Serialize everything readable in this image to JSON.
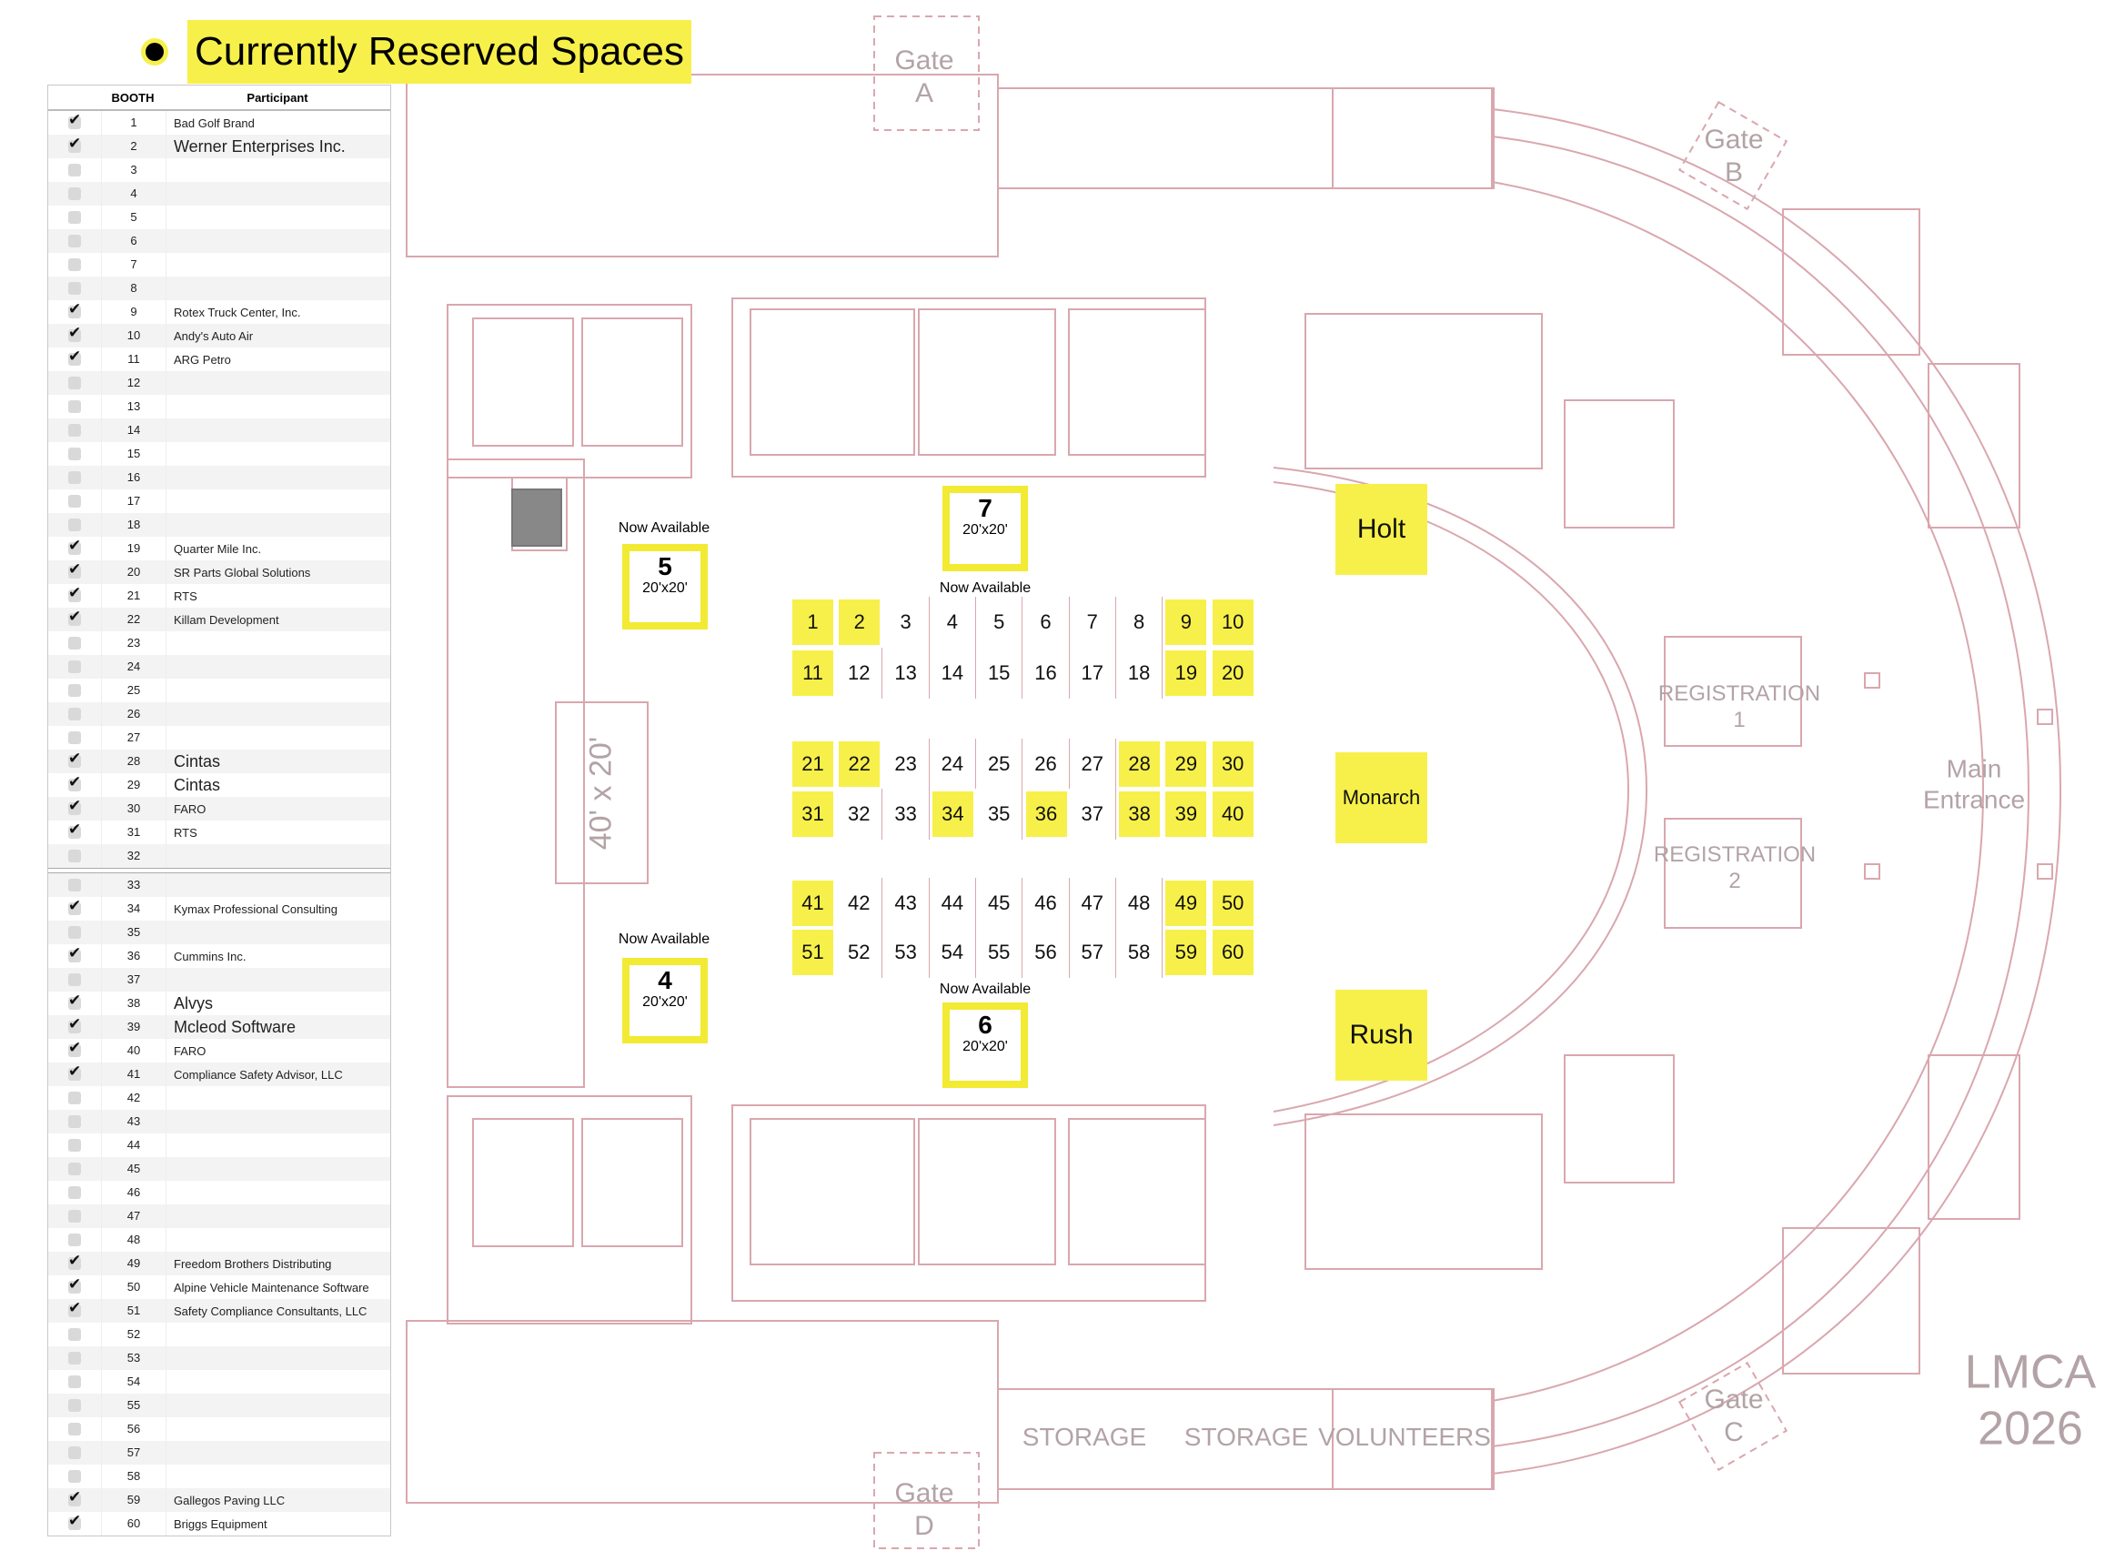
{
  "title": "Currently Reserved Spaces",
  "table": {
    "headers": {
      "booth": "BOOTH",
      "participant": "Participant"
    },
    "rows": [
      {
        "booth": "1",
        "reserved": true,
        "participant": "Bad Golf Brand"
      },
      {
        "booth": "2",
        "reserved": true,
        "participant": "Werner Enterprises Inc."
      },
      {
        "booth": "3",
        "reserved": false,
        "participant": ""
      },
      {
        "booth": "4",
        "reserved": false,
        "participant": ""
      },
      {
        "booth": "5",
        "reserved": false,
        "participant": ""
      },
      {
        "booth": "6",
        "reserved": false,
        "participant": ""
      },
      {
        "booth": "7",
        "reserved": false,
        "participant": ""
      },
      {
        "booth": "8",
        "reserved": false,
        "participant": ""
      },
      {
        "booth": "9",
        "reserved": true,
        "participant": "Rotex Truck Center, Inc."
      },
      {
        "booth": "10",
        "reserved": true,
        "participant": "Andy's Auto Air"
      },
      {
        "booth": "11",
        "reserved": true,
        "participant": "ARG Petro"
      },
      {
        "booth": "12",
        "reserved": false,
        "participant": ""
      },
      {
        "booth": "13",
        "reserved": false,
        "participant": ""
      },
      {
        "booth": "14",
        "reserved": false,
        "participant": ""
      },
      {
        "booth": "15",
        "reserved": false,
        "participant": ""
      },
      {
        "booth": "16",
        "reserved": false,
        "participant": ""
      },
      {
        "booth": "17",
        "reserved": false,
        "participant": ""
      },
      {
        "booth": "18",
        "reserved": false,
        "participant": ""
      },
      {
        "booth": "19",
        "reserved": true,
        "participant": "Quarter Mile Inc."
      },
      {
        "booth": "20",
        "reserved": true,
        "participant": "SR Parts Global Solutions"
      },
      {
        "booth": "21",
        "reserved": true,
        "participant": "RTS"
      },
      {
        "booth": "22",
        "reserved": true,
        "participant": "Killam Development"
      },
      {
        "booth": "23",
        "reserved": false,
        "participant": ""
      },
      {
        "booth": "24",
        "reserved": false,
        "participant": ""
      },
      {
        "booth": "25",
        "reserved": false,
        "participant": ""
      },
      {
        "booth": "26",
        "reserved": false,
        "participant": ""
      },
      {
        "booth": "27",
        "reserved": false,
        "participant": ""
      },
      {
        "booth": "28",
        "reserved": true,
        "participant": "Cintas"
      },
      {
        "booth": "29",
        "reserved": true,
        "participant": "Cintas"
      },
      {
        "booth": "30",
        "reserved": true,
        "participant": "FARO"
      },
      {
        "booth": "31",
        "reserved": true,
        "participant": "RTS"
      },
      {
        "booth": "32",
        "reserved": false,
        "participant": ""
      },
      {
        "booth": "33",
        "reserved": false,
        "participant": ""
      },
      {
        "booth": "34",
        "reserved": true,
        "participant": "Kymax Professional Consulting"
      },
      {
        "booth": "35",
        "reserved": false,
        "participant": ""
      },
      {
        "booth": "36",
        "reserved": true,
        "participant": "Cummins Inc."
      },
      {
        "booth": "37",
        "reserved": false,
        "participant": ""
      },
      {
        "booth": "38",
        "reserved": true,
        "participant": "Alvys"
      },
      {
        "booth": "39",
        "reserved": true,
        "participant": "Mcleod Software"
      },
      {
        "booth": "40",
        "reserved": true,
        "participant": "FARO"
      },
      {
        "booth": "41",
        "reserved": true,
        "participant": "Compliance Safety Advisor, LLC"
      },
      {
        "booth": "42",
        "reserved": false,
        "participant": ""
      },
      {
        "booth": "43",
        "reserved": false,
        "participant": ""
      },
      {
        "booth": "44",
        "reserved": false,
        "participant": ""
      },
      {
        "booth": "45",
        "reserved": false,
        "participant": ""
      },
      {
        "booth": "46",
        "reserved": false,
        "participant": ""
      },
      {
        "booth": "47",
        "reserved": false,
        "participant": ""
      },
      {
        "booth": "48",
        "reserved": false,
        "participant": ""
      },
      {
        "booth": "49",
        "reserved": true,
        "participant": "Freedom Brothers Distributing"
      },
      {
        "booth": "50",
        "reserved": true,
        "participant": "Alpine Vehicle Maintenance Software"
      },
      {
        "booth": "51",
        "reserved": true,
        "participant": "Safety Compliance Consultants, LLC"
      },
      {
        "booth": "52",
        "reserved": false,
        "participant": ""
      },
      {
        "booth": "53",
        "reserved": false,
        "participant": ""
      },
      {
        "booth": "54",
        "reserved": false,
        "participant": ""
      },
      {
        "booth": "55",
        "reserved": false,
        "participant": ""
      },
      {
        "booth": "56",
        "reserved": false,
        "participant": ""
      },
      {
        "booth": "57",
        "reserved": false,
        "participant": ""
      },
      {
        "booth": "58",
        "reserved": false,
        "participant": ""
      },
      {
        "booth": "59",
        "reserved": true,
        "participant": "Gallegos Paving LLC"
      },
      {
        "booth": "60",
        "reserved": true,
        "participant": "Briggs Equipment"
      }
    ]
  },
  "large_spaces": [
    {
      "id": "space-7",
      "number": "7",
      "size": "20'x20'",
      "status": "Now Available"
    },
    {
      "id": "space-5",
      "number": "5",
      "size": "20'x20'",
      "status": "Now Available"
    },
    {
      "id": "space-4",
      "number": "4",
      "size": "20'x20'",
      "status": "Now Available"
    },
    {
      "id": "space-6",
      "number": "6",
      "size": "20'x20'",
      "status": "Now Available"
    }
  ],
  "rooms": [
    {
      "id": "holt",
      "label": "Holt"
    },
    {
      "id": "monarch",
      "label": "Monarch"
    },
    {
      "id": "rush",
      "label": "Rush"
    }
  ],
  "plan_labels": {
    "gate_a": "Gate\nA",
    "gate_b": "Gate\nB",
    "gate_c": "Gate\nC",
    "gate_d": "Gate\nD",
    "registration_1": "REGISTRATION\n1",
    "registration_2": "REGISTRATION\n2",
    "main_entrance": "Main\nEntrance",
    "storage_1": "STORAGE",
    "storage_2": "STORAGE",
    "volunteers": "VOLUNTEERS",
    "lmca": "LMCA\n2026",
    "stage_size": "40' x 20'"
  },
  "colors": {
    "highlight": "#f7f04a",
    "plan_lines": "#d9a7ae",
    "plan_text": "#b3a3a6"
  }
}
